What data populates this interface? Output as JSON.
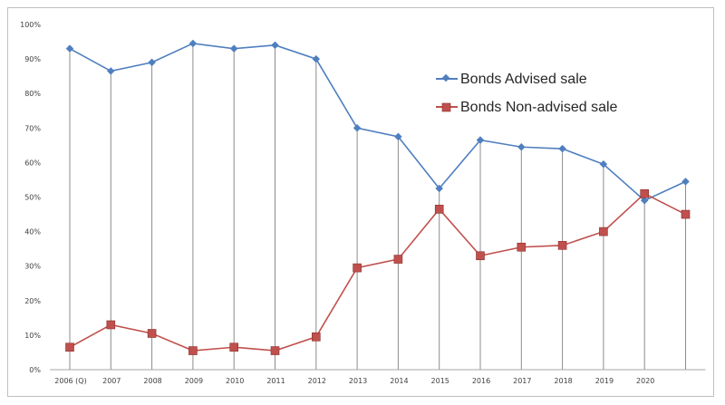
{
  "chart_data": {
    "type": "line",
    "title": "",
    "xlabel": "",
    "ylabel": "",
    "categories": [
      "2006 (Q)",
      "2007",
      "2008",
      "2009",
      "2010",
      "2011",
      "2012",
      "2013",
      "2014",
      "2015",
      "2016",
      "2017",
      "2018",
      "2019",
      "2020",
      ""
    ],
    "y_ticks": [
      "0%",
      "10%",
      "20%",
      "30%",
      "40%",
      "50%",
      "60%",
      "70%",
      "80%",
      "90%",
      "100%"
    ],
    "ylim": [
      0,
      100
    ],
    "grid": "vertical drop lines per category",
    "legend_position": "top-right",
    "series": [
      {
        "name": "Bonds Advised sale",
        "color": "#4f7fbf",
        "marker": "diamond",
        "values": [
          93,
          86.5,
          89,
          94.5,
          93,
          94,
          90,
          70,
          67.5,
          52.5,
          66.5,
          64.5,
          64,
          59.5,
          49,
          54.5
        ]
      },
      {
        "name": "Bonds Non-advised sale",
        "color": "#c0504d",
        "marker": "square",
        "values": [
          6.5,
          13,
          10.5,
          5.5,
          6.5,
          5.5,
          9.5,
          29.5,
          32,
          46.5,
          33,
          35.5,
          36,
          40,
          51,
          45
        ]
      }
    ]
  }
}
